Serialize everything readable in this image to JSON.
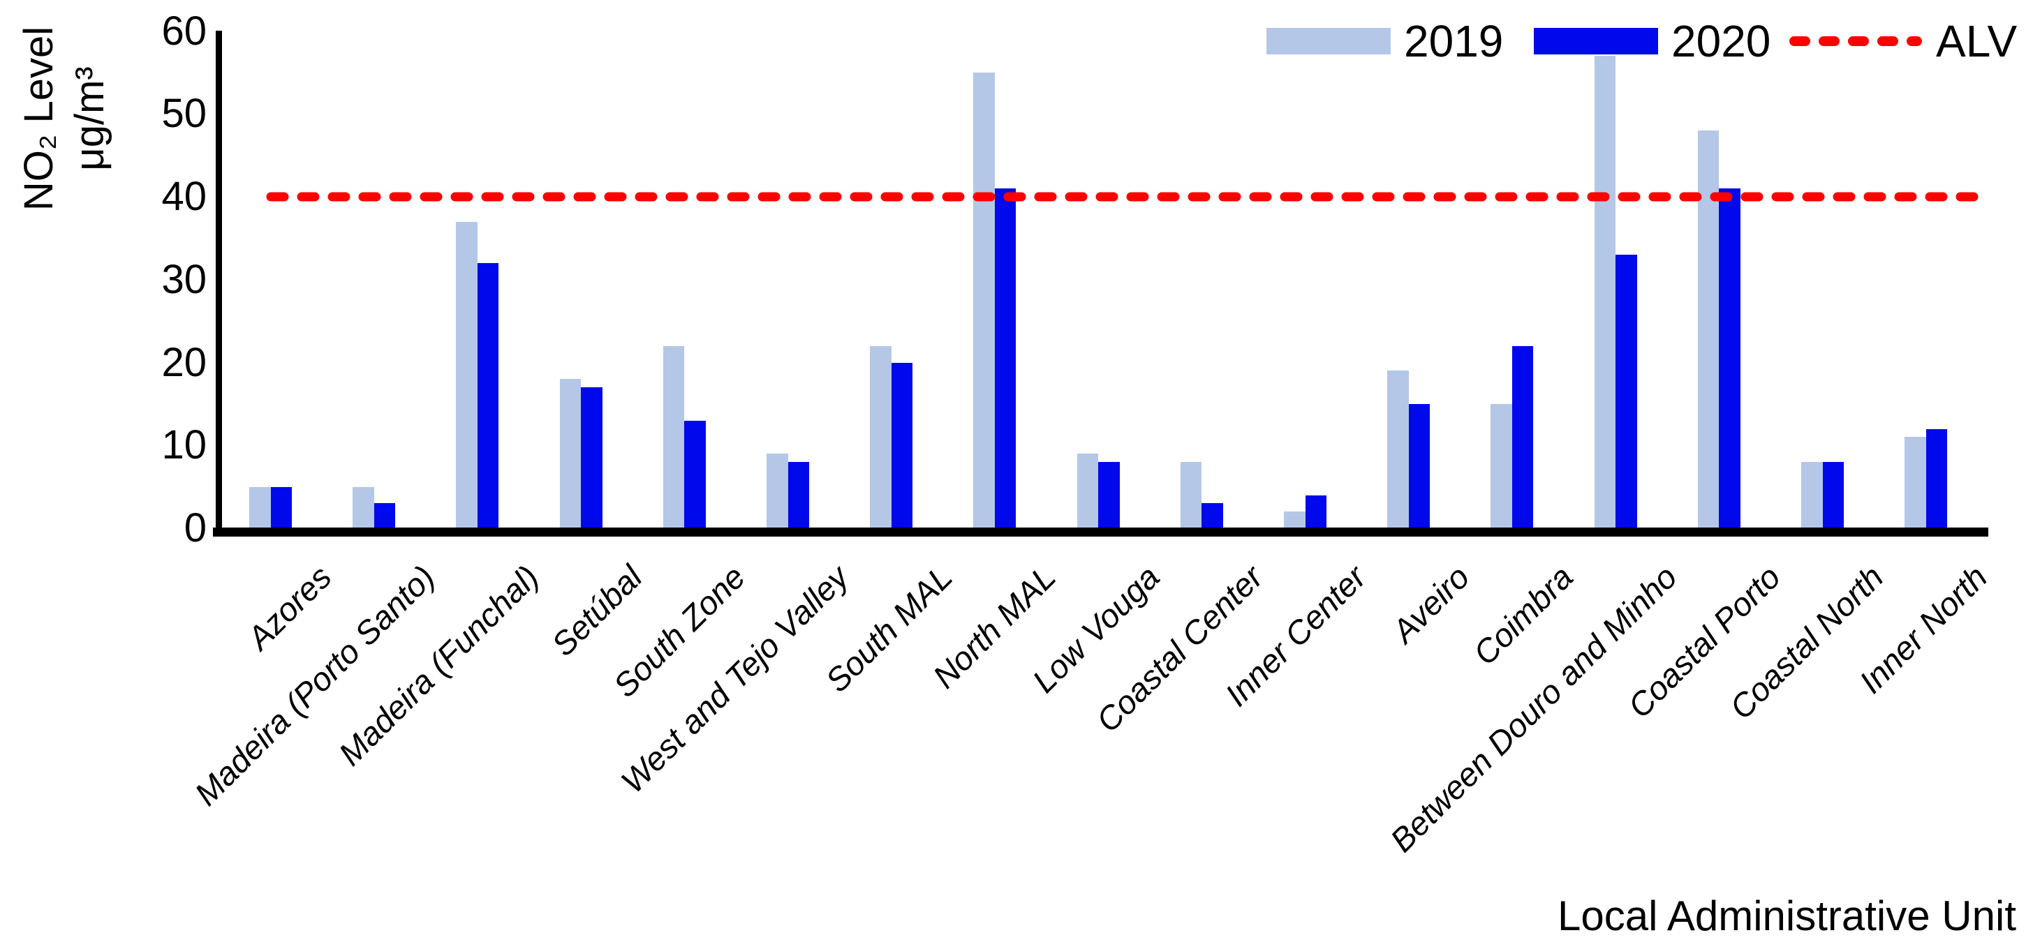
{
  "chart_data": {
    "type": "bar",
    "title": "",
    "categories": [
      "Azores",
      "Madeira (Porto Santo)",
      "Madeira (Funchal)",
      "Setúbal",
      "South Zone",
      "West and Tejo Valley",
      "South MAL",
      "North MAL",
      "Low Vouga",
      "Coastal Center",
      "Inner Center",
      "Aveiro",
      "Coimbra",
      "Between Douro and Minho",
      "Coastal Porto",
      "Coastal North",
      "Inner North"
    ],
    "series": [
      {
        "name": "2019",
        "color": "#B4C7E7",
        "values": [
          5,
          5,
          37,
          18,
          22,
          9,
          22,
          55,
          9,
          8,
          2,
          19,
          15,
          57,
          48,
          8,
          11
        ]
      },
      {
        "name": "2020",
        "color": "#0009EB",
        "values": [
          5,
          3,
          32,
          17,
          13,
          8,
          20,
          41,
          8,
          3,
          4,
          15,
          22,
          33,
          41,
          8,
          12
        ]
      }
    ],
    "reference_line": {
      "name": "ALV",
      "value": 40,
      "color": "#FF0000",
      "style": "dashed"
    },
    "ylabel_line1": "NO₂ Level",
    "ylabel_line2": "μg/m³",
    "xlabel": "Local Administrative Unit",
    "ylim": [
      0,
      60
    ],
    "yticks": [
      0,
      10,
      20,
      30,
      40,
      50,
      60
    ],
    "grid": false,
    "legend_position": "top-right",
    "legend_labels": [
      "2019",
      "2020",
      "ALV"
    ],
    "axis_color": "#000000",
    "background_color": "#FFFFFF"
  }
}
